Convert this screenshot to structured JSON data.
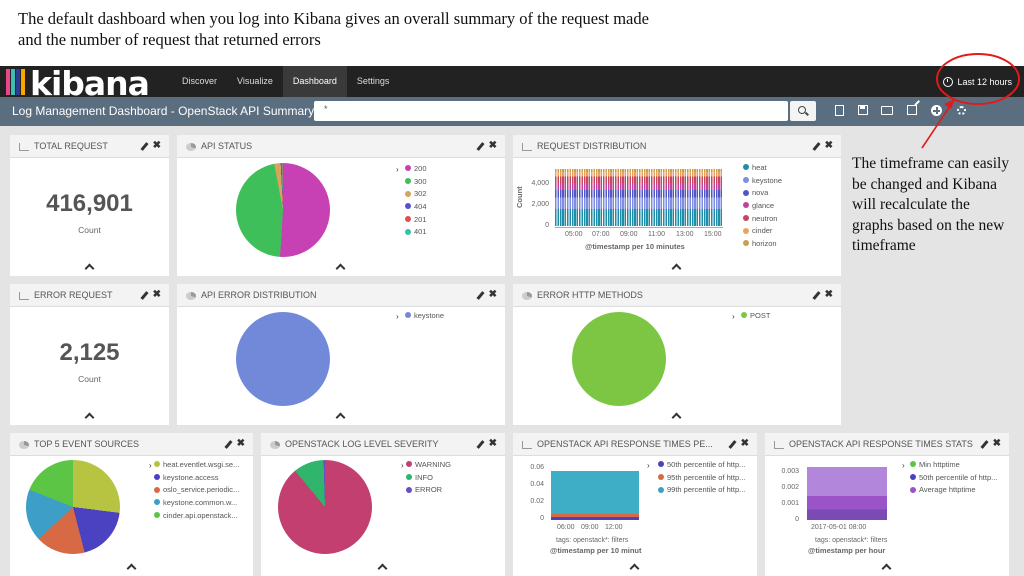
{
  "caption": "The default dashboard when you log into Kibana gives an overall summary of the request made and the number of request that returned errors",
  "annotation": "The timeframe can easily be changed and Kibana will recalculate the graphs based on the new timeframe",
  "app": {
    "logo_text": "kibana",
    "nav": [
      "Discover",
      "Visualize",
      "Dashboard",
      "Settings"
    ],
    "active_nav": "Dashboard",
    "timepicker": "Last 12 hours",
    "accent": "#c8202f"
  },
  "subbar": {
    "title": "Log Management Dashboard - OpenStack API Summary",
    "query": "*",
    "icons": [
      "new-dashboard-icon",
      "save-icon",
      "open-icon",
      "share-icon",
      "add-visualization-icon",
      "settings-icon"
    ]
  },
  "panels": {
    "total_request": {
      "title": "TOTAL REQUEST",
      "value": "416,901",
      "label": "Count"
    },
    "api_status": {
      "title": "API STATUS",
      "legend": [
        {
          "label": "200",
          "color": "#c741b4",
          "value": 51
        },
        {
          "label": "300",
          "color": "#3fbf5a",
          "value": 46
        },
        {
          "label": "302",
          "color": "#d4a55c",
          "value": 2.2
        },
        {
          "label": "404",
          "color": "#5750d0",
          "value": 0.3
        },
        {
          "label": "201",
          "color": "#dd4f50",
          "value": 0.3
        },
        {
          "label": "401",
          "color": "#34c2a6",
          "value": 0.2
        }
      ]
    },
    "request_distribution": {
      "title": "REQUEST DISTRIBUTION",
      "y_axis_title": "Count",
      "y_ticks": [
        "4,000",
        "2,000",
        "0"
      ],
      "x_ticks": [
        "05:00",
        "07:00",
        "09:00",
        "11:00",
        "13:00",
        "15:00"
      ],
      "x_axis_title": "@timestamp per 10 minutes",
      "legend": [
        {
          "label": "heat",
          "color": "#1e8ea7"
        },
        {
          "label": "keystone",
          "color": "#7e8de0"
        },
        {
          "label": "nova",
          "color": "#5256c4"
        },
        {
          "label": "glance",
          "color": "#c3429b"
        },
        {
          "label": "neutron",
          "color": "#c54560"
        },
        {
          "label": "cinder",
          "color": "#e9a365"
        },
        {
          "label": "horizon",
          "color": "#c8a14a"
        }
      ]
    },
    "error_request": {
      "title": "ERROR REQUEST",
      "value": "2,125",
      "label": "Count"
    },
    "api_error_distribution": {
      "title": "API ERROR DISTRIBUTION",
      "legend": [
        {
          "label": "keystone",
          "color": "#7289d9",
          "value": 100
        }
      ]
    },
    "error_http_methods": {
      "title": "ERROR HTTP METHODS",
      "legend": [
        {
          "label": "POST",
          "color": "#7cc644",
          "value": 100
        }
      ]
    },
    "top5_event_sources": {
      "title": "TOP 5 EVENT SOURCES",
      "legend": [
        {
          "label": "heat.eventlet.wsgi.se...",
          "color": "#b6c441",
          "value": 27
        },
        {
          "label": "keystone.access",
          "color": "#4a42c0",
          "value": 19
        },
        {
          "label": "oslo_service.periodic...",
          "color": "#d76a45",
          "value": 17
        },
        {
          "label": "keystone.common.w...",
          "color": "#3d9ec7",
          "value": 18
        },
        {
          "label": "cinder.api.openstack...",
          "color": "#5cc545",
          "value": 19
        }
      ]
    },
    "log_level_severity": {
      "title": "OPENSTACK LOG LEVEL SEVERITY",
      "legend": [
        {
          "label": "WARNING",
          "color": "#c23f6f",
          "value": 89
        },
        {
          "label": "INFO",
          "color": "#2fb56c",
          "value": 10.5
        },
        {
          "label": "ERROR",
          "color": "#6a4cc4",
          "value": 0.5
        }
      ]
    },
    "response_times_pe": {
      "title": "OPENSTACK API RESPONSE TIMES PE...",
      "y_ticks": [
        "0.06",
        "0.04",
        "0.02",
        "0"
      ],
      "x_ticks": [
        "06:00",
        "09:00",
        "12:00"
      ],
      "filter_text": "tags: openstack*: filters",
      "x_axis_title": "@timestamp per 10 minut",
      "legend": [
        {
          "label": "50th percentile of http...",
          "color": "#4a42c0"
        },
        {
          "label": "95th percentile of http...",
          "color": "#d76a45"
        },
        {
          "label": "99th percentile of http...",
          "color": "#3d9ec7"
        }
      ]
    },
    "response_times_stats": {
      "title": "OPENSTACK API RESPONSE TIMES STATS",
      "y_ticks": [
        "0.003",
        "0.002",
        "0.001",
        "0"
      ],
      "x_ticks": [
        "2017-05-01 08:00"
      ],
      "filter_text": "tags: openstack*: filters",
      "x_axis_title": "@timestamp per hour",
      "legend": [
        {
          "label": "Min httptime",
          "color": "#5cc545"
        },
        {
          "label": "50th percentile of http...",
          "color": "#4a42c0"
        },
        {
          "label": "Average httptime",
          "color": "#9b54c8"
        }
      ]
    }
  }
}
